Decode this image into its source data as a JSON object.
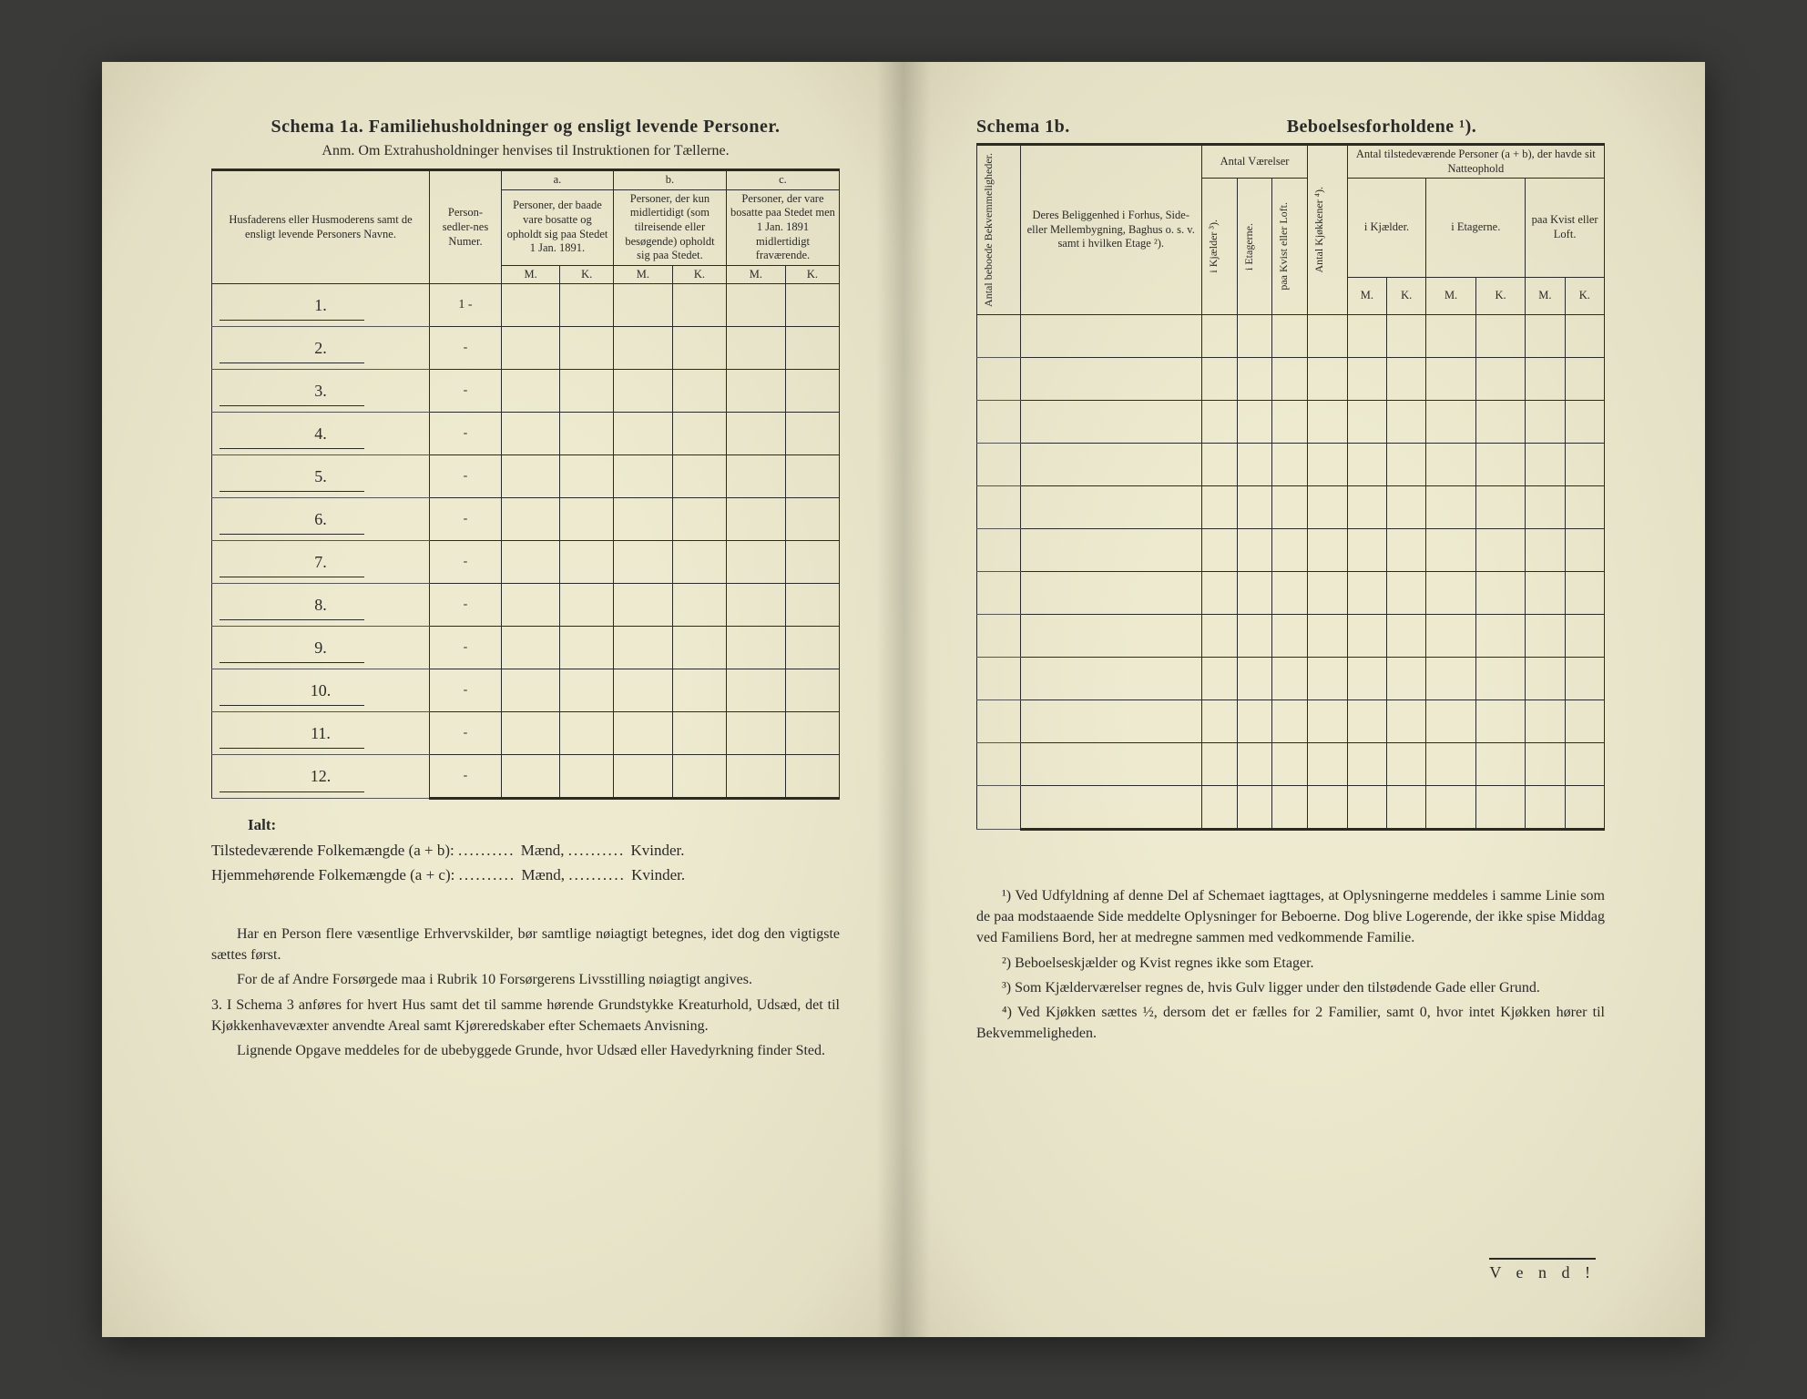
{
  "left": {
    "title": "Schema 1a.   Familiehusholdninger og ensligt levende Personer.",
    "subtitle": "Anm.  Om Extrahusholdninger henvises til Instruktionen for Tællerne.",
    "colHead": {
      "names": "Husfaderens eller Husmoderens samt de ensligt levende Personers Navne.",
      "numer": "Person-sedler-nes Numer.",
      "a_label": "a.",
      "a_text": "Personer, der baade vare bosatte og opholdt sig paa Stedet 1 Jan. 1891.",
      "b_label": "b.",
      "b_text": "Personer, der kun midlertidigt (som tilreisende eller besøgende) opholdt sig paa Stedet.",
      "c_label": "c.",
      "c_text": "Personer, der vare bosatte paa Stedet men 1 Jan. 1891 midlertidigt fraværende.",
      "M": "M.",
      "K": "K."
    },
    "rows": [
      "1.",
      "2.",
      "3.",
      "4.",
      "5.",
      "6.",
      "7.",
      "8.",
      "9.",
      "10.",
      "11.",
      "12."
    ],
    "rowNumer": [
      "1 -",
      "-",
      "-",
      "-",
      "-",
      "-",
      "-",
      "-",
      "-",
      "-",
      "-",
      "-"
    ],
    "ialt": "Ialt:",
    "sum1a": "Tilstedeværende Folkemængde (a + b):",
    "sum1b": "Mænd,",
    "sum1c": "Kvinder.",
    "sum2a": "Hjemmehørende Folkemængde (a + c):",
    "foot": [
      "Har en Person flere væsentlige Erhvervskilder, bør samtlige nøiagtigt betegnes, idet dog den vigtigste sættes først.",
      "For de af Andre Forsørgede maa i Rubrik 10 Forsørgerens Livsstilling nøiagtigt angives.",
      "3.  I Schema 3 anføres for hvert Hus samt det til samme hørende Grundstykke Kreaturhold, Udsæd, det til Kjøkkenhavevæxter anvendte Areal samt Kjøreredskaber efter Schemaets Anvisning.",
      "Lignende Opgave meddeles for de ubebyggede Grunde, hvor Udsæd eller Havedyrkning finder Sted."
    ]
  },
  "right": {
    "title1": "Schema 1b.",
    "title2": "Beboelsesforholdene ¹).",
    "colHead": {
      "c1": "Antal beboede Bekvemmeligheder.",
      "c2": "Deres Beliggenhed i Forhus, Side- eller Mellembygning, Baghus o. s. v. samt i hvilken Etage ²).",
      "c3grp": "Antal Værelser",
      "c3a": "i Kjælder ³).",
      "c3b": "i Etagerne.",
      "c3c": "paa Kvist eller Loft.",
      "c4": "Antal Kjøkkener ⁴).",
      "c5grp": "Antal tilstedeværende Personer (a + b), der havde sit Natteophold",
      "c5a": "i Kjælder.",
      "c5b": "i Etagerne.",
      "c5c": "paa Kvist eller Loft.",
      "M": "M.",
      "K": "K."
    },
    "rows": 12,
    "foot": [
      "¹) Ved Udfyldning af denne Del af Schemaet iagttages, at Oplysningerne meddeles i samme Linie som de paa modstaaende Side meddelte Oplysninger for Beboerne. Dog blive Logerende, der ikke spise Middag ved Familiens Bord, her at medregne sammen med vedkommende Familie.",
      "²) Beboelseskjælder og Kvist regnes ikke som Etager.",
      "³) Som Kjælderværelser regnes de, hvis Gulv ligger under den tilstødende Gade eller Grund.",
      "⁴) Ved Kjøkken sættes ½, dersom det er fælles for 2 Familier, samt 0, hvor intet Kjøkken hører til Bekvemmeligheden."
    ],
    "vend": "V e n d !"
  }
}
